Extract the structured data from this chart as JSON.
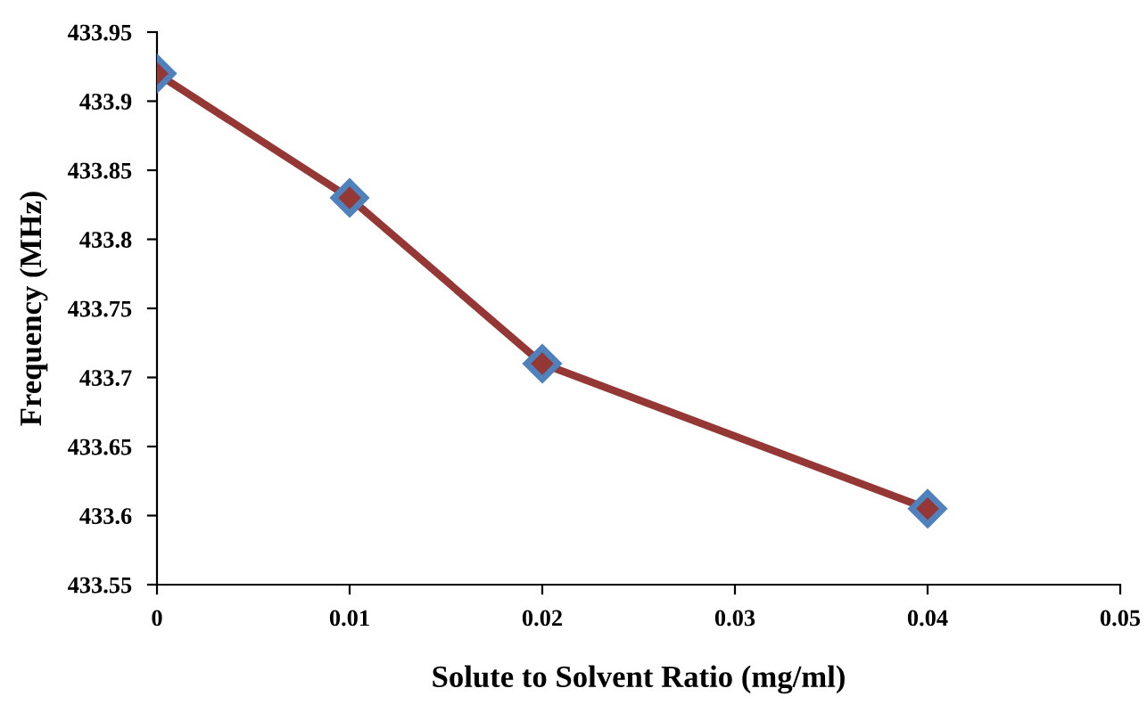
{
  "chart_data": {
    "type": "line",
    "xlabel": "Solute to Solvent Ratio (mg/ml)",
    "ylabel": "Frequency (MHz)",
    "x": [
      0,
      0.01,
      0.02,
      0.04
    ],
    "series": [
      {
        "color": "#953735",
        "values": [
          433.92,
          433.83,
          433.71,
          433.605
        ]
      }
    ],
    "xlim": [
      0,
      0.05
    ],
    "xticks": [
      0,
      0.01,
      0.02,
      0.03,
      0.04,
      0.05
    ],
    "ylim": [
      433.55,
      433.95
    ],
    "yticks": [
      433.55,
      433.6,
      433.65,
      433.7,
      433.75,
      433.8,
      433.85,
      433.9,
      433.95
    ],
    "marker": "diamond",
    "line_style": "solid",
    "grid": false,
    "legend": false
  }
}
